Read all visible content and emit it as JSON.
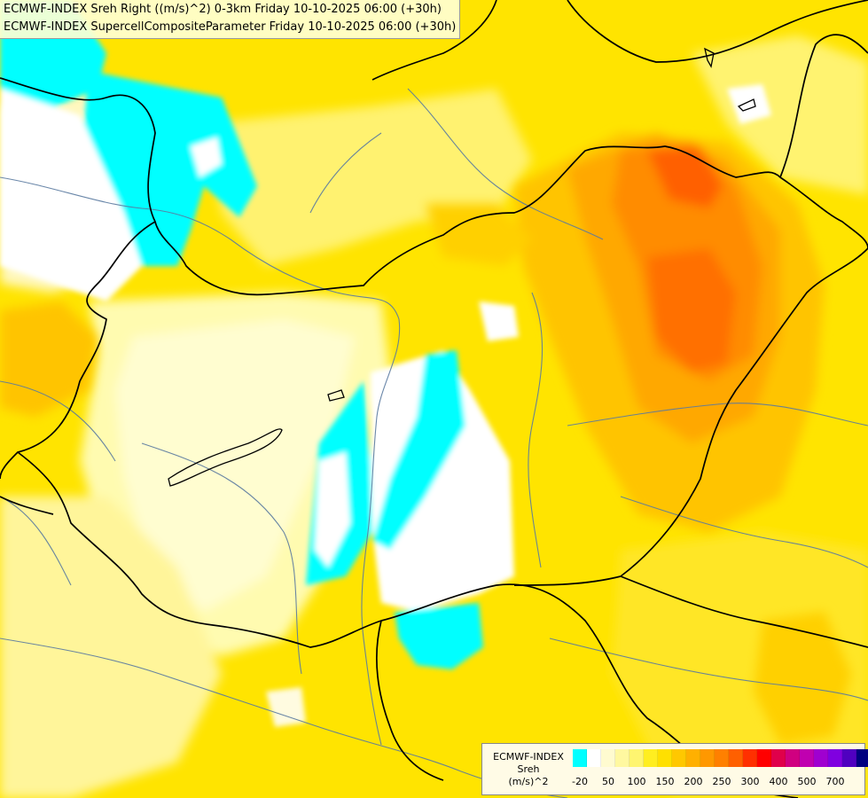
{
  "header": {
    "line1": "ECMWF-INDEX Sreh Right ((m/s)^2) 0-3km Friday 10-10-2025 06:00 (+30h)",
    "line2": "ECMWF-INDEX SupercellCompositeParameter Friday 10-10-2025 06:00 (+30h)"
  },
  "legend": {
    "model": "ECMWF-INDEX",
    "parameter": "Sreh",
    "unit": "(m/s)^2",
    "colors": [
      "#00ffff",
      "#ffffff",
      "#fffbd0",
      "#fff8a0",
      "#fff570",
      "#ffee20",
      "#ffe000",
      "#ffc800",
      "#ffb000",
      "#ff9800",
      "#ff8000",
      "#ff6000",
      "#ff3000",
      "#ff0000",
      "#e0004a",
      "#d00080",
      "#c000b0",
      "#a000d0",
      "#8000e0",
      "#5000c0",
      "#000080"
    ],
    "ticks": [
      {
        "label": "-20",
        "index": 0.5
      },
      {
        "label": "50",
        "index": 2.5
      },
      {
        "label": "100",
        "index": 4.5
      },
      {
        "label": "150",
        "index": 6.5
      },
      {
        "label": "200",
        "index": 8.5
      },
      {
        "label": "250",
        "index": 10.5
      },
      {
        "label": "300",
        "index": 12.5
      },
      {
        "label": "400",
        "index": 14.5
      },
      {
        "label": "500",
        "index": 16.5
      },
      {
        "label": "700",
        "index": 18.5
      }
    ]
  },
  "colors": {
    "background": "#ffe000",
    "negative_cyan": "#00ffff",
    "zero_white": "#ffffff",
    "max_orange": "#ff5a00",
    "border_black": "#000000",
    "river_blue": "#5a7aa0"
  }
}
